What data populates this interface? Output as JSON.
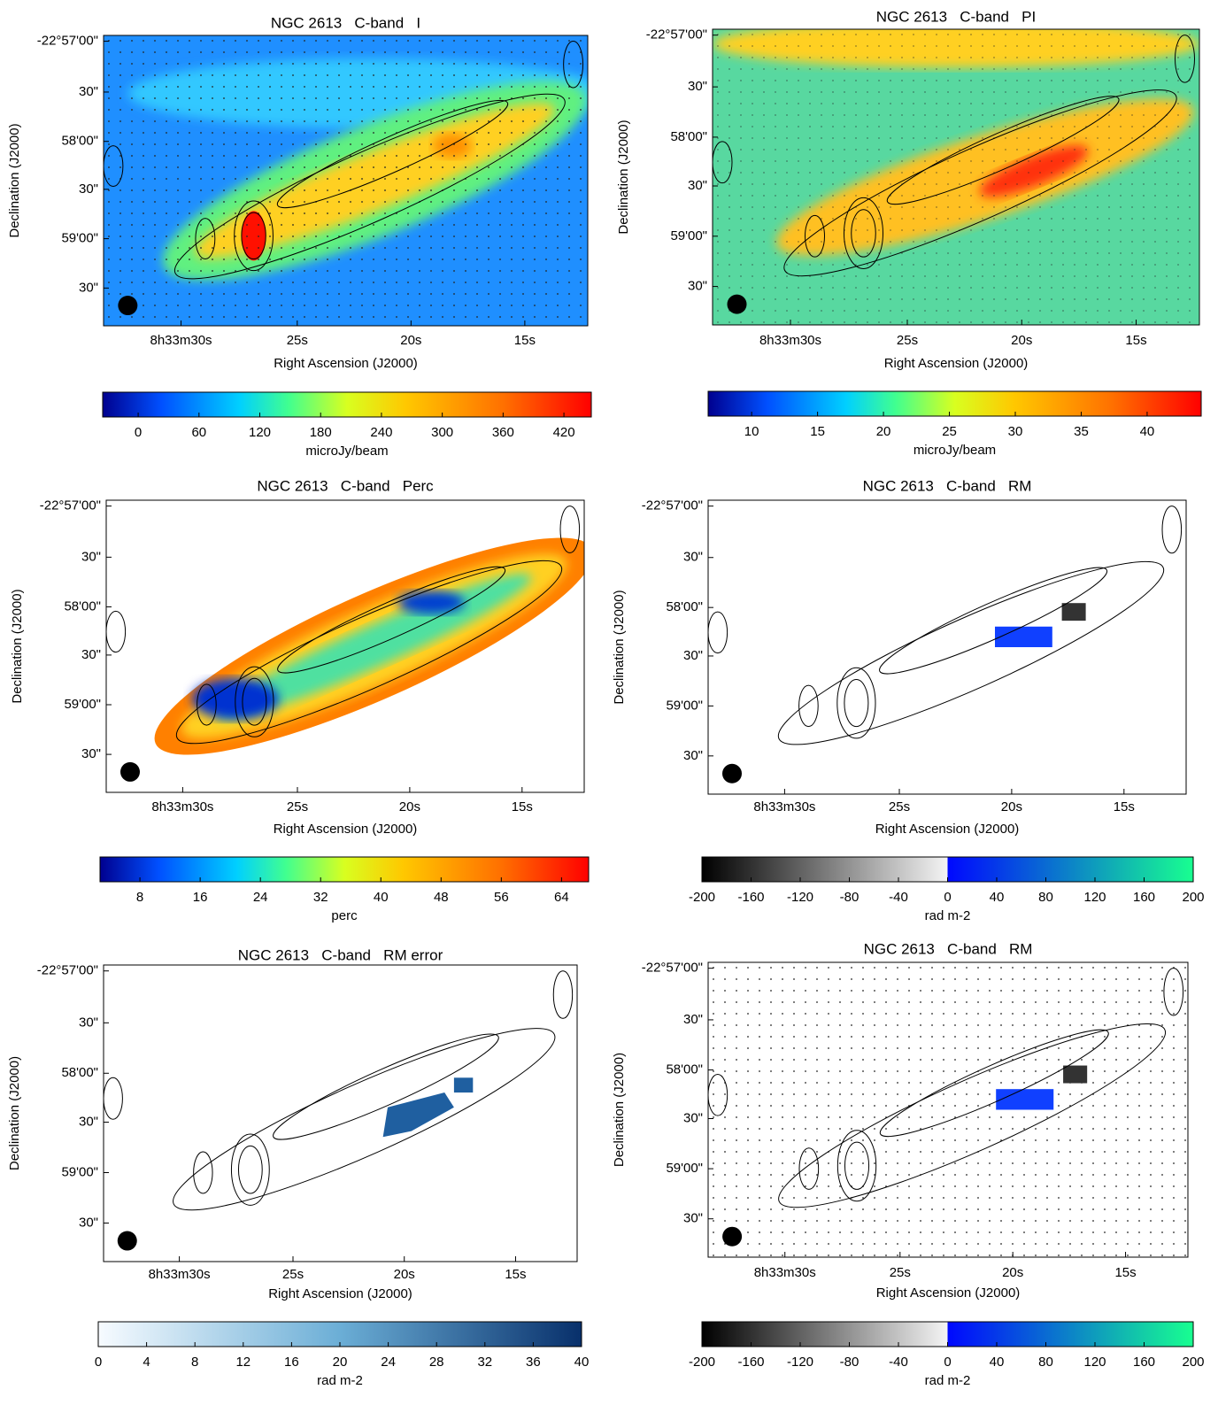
{
  "panels": [
    {
      "title": "NGC 2613   C-band   I",
      "xlabel": "Right Ascension (J2000)",
      "ylabel": "Declination (J2000)",
      "xticks": [
        "8h33m30s",
        "25s",
        "20s",
        "15s"
      ],
      "yticks": [
        "-22°57'00\"",
        "30\"",
        "58'00\"",
        "30\"",
        "59'00\"",
        "30\""
      ],
      "colorbar": {
        "label": "microJy/beam",
        "lim": [
          -35,
          447
        ],
        "ticks": [
          0,
          60,
          120,
          180,
          240,
          300,
          360,
          420
        ]
      }
    },
    {
      "title": "NGC 2613   C-band   PI",
      "xlabel": "Right Ascension (J2000)",
      "ylabel": "Declination (J2000)",
      "xticks": [
        "8h33m30s",
        "25s",
        "20s",
        "15s"
      ],
      "yticks": [
        "-22°57'00\"",
        "30\"",
        "58'00\"",
        "30\"",
        "59'00\"",
        "30\""
      ],
      "colorbar": {
        "label": "microJy/beam",
        "lim": [
          6.7,
          44.1
        ],
        "ticks": [
          10,
          15,
          20,
          25,
          30,
          35,
          40
        ]
      }
    },
    {
      "title": "NGC 2613   C-band   Perc",
      "xlabel": "Right Ascension (J2000)",
      "ylabel": "Declination (J2000)",
      "xticks": [
        "8h33m30s",
        "25s",
        "20s",
        "15s"
      ],
      "yticks": [
        "-22°57'00\"",
        "30\"",
        "58'00\"",
        "30\"",
        "59'00\"",
        "30\""
      ],
      "colorbar": {
        "label": "perc",
        "lim": [
          2.7,
          67.6
        ],
        "ticks": [
          8,
          16,
          24,
          32,
          40,
          48,
          56,
          64
        ]
      }
    },
    {
      "title": "NGC 2613   C-band   RM",
      "xlabel": "Right Ascension (J2000)",
      "ylabel": "Declination (J2000)",
      "xticks": [
        "8h33m30s",
        "25s",
        "20s",
        "15s"
      ],
      "yticks": [
        "-22°57'00\"",
        "30\"",
        "58'00\"",
        "30\"",
        "59'00\"",
        "30\""
      ],
      "colorbar": {
        "label": "rad m-2",
        "lim": [
          -200,
          200
        ],
        "ticks": [
          -200,
          -160,
          -120,
          -80,
          -40,
          0,
          40,
          80,
          120,
          160,
          200
        ]
      }
    },
    {
      "title": "NGC 2613   C-band   RM error",
      "xlabel": "Right Ascension (J2000)",
      "ylabel": "Declination (J2000)",
      "xticks": [
        "8h33m30s",
        "25s",
        "20s",
        "15s"
      ],
      "yticks": [
        "-22°57'00\"",
        "30\"",
        "58'00\"",
        "30\"",
        "59'00\"",
        "30\""
      ],
      "colorbar": {
        "label": "rad m-2",
        "lim": [
          0,
          40
        ],
        "ticks": [
          0,
          4,
          8,
          12,
          16,
          20,
          24,
          28,
          32,
          36,
          40
        ]
      }
    },
    {
      "title": "NGC 2613   C-band   RM",
      "xlabel": "Right Ascension (J2000)",
      "ylabel": "Declination (J2000)",
      "xticks": [
        "8h33m30s",
        "25s",
        "20s",
        "15s"
      ],
      "yticks": [
        "-22°57'00\"",
        "30\"",
        "58'00\"",
        "30\"",
        "59'00\"",
        "30\""
      ],
      "colorbar": {
        "label": "rad m-2",
        "lim": [
          -200,
          200
        ],
        "ticks": [
          -200,
          -160,
          -120,
          -80,
          -40,
          0,
          40,
          80,
          120,
          160,
          200
        ]
      }
    }
  ]
}
